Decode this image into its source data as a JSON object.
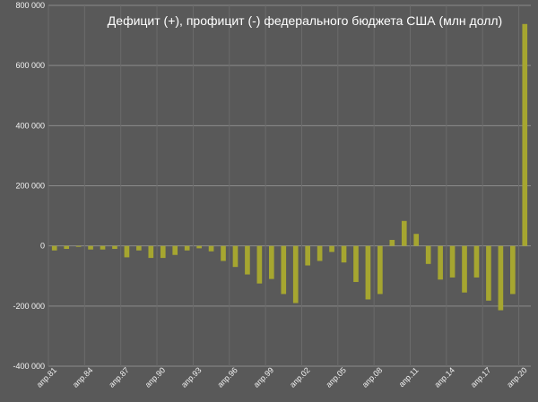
{
  "chart_data": {
    "type": "bar",
    "title": "Дефицит (+), профицит (-) федерального бюджета США (млн долл)",
    "xlabel": "",
    "ylabel": "",
    "ylim": [
      -400000,
      800000
    ],
    "y_ticks": [
      -400000,
      -200000,
      0,
      200000,
      400000,
      600000,
      800000
    ],
    "y_tick_labels": [
      "-400 000",
      "-200 000",
      "0",
      "200 000",
      "400 000",
      "600 000",
      "800 000"
    ],
    "grid": true,
    "bar_color": "#a6a630",
    "background_color": "#595959",
    "gridline_color": "#8c8c8c",
    "x": [
      "апр.81",
      "апр.82",
      "апр.83",
      "апр.84",
      "апр.85",
      "апр.86",
      "апр.87",
      "апр.88",
      "апр.89",
      "апр.90",
      "апр.91",
      "апр.92",
      "апр.93",
      "апр.94",
      "апр.95",
      "апр.96",
      "апр.97",
      "апр.98",
      "апр.99",
      "апр.00",
      "апр.01",
      "апр.02",
      "апр.03",
      "апр.04",
      "апр.05",
      "апр.06",
      "апр.07",
      "апр.08",
      "апр.09",
      "апр.10",
      "апр.11",
      "апр.12",
      "апр.13",
      "апр.14",
      "апр.15",
      "апр.16",
      "апр.17",
      "апр.18",
      "апр.19",
      "апр.20"
    ],
    "x_tick_labels": [
      "апр.81",
      "апр.84",
      "апр.87",
      "апр.90",
      "апр.93",
      "апр.96",
      "апр.99",
      "апр.02",
      "апр.05",
      "апр.08",
      "апр.11",
      "апр.14",
      "апр.17",
      "апр.20"
    ],
    "values": [
      -15000,
      -10000,
      -3000,
      -12000,
      -12000,
      -10000,
      -38000,
      -15000,
      -40000,
      -40000,
      -30000,
      -15000,
      -8000,
      -18000,
      -50000,
      -70000,
      -95000,
      -125000,
      -110000,
      -160000,
      -190000,
      -65000,
      -50000,
      -20000,
      -55000,
      -120000,
      -178000,
      -160000,
      20000,
      83000,
      40000,
      -60000,
      -112000,
      -105000,
      -155000,
      -105000,
      -182000,
      -214000,
      -160000,
      738000
    ]
  }
}
